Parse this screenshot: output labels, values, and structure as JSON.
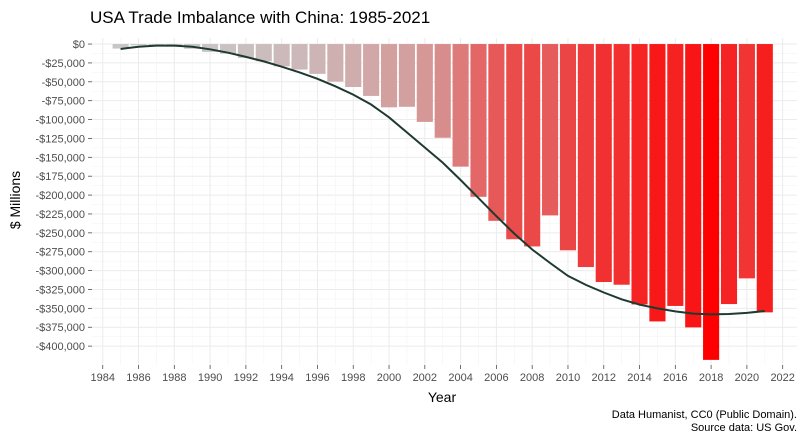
{
  "chart_data": {
    "type": "bar",
    "title": "USA Trade Imbalance with China: 1985-2021",
    "xlabel": "Year",
    "ylabel": "$ Millions",
    "caption": [
      "Data Humanist, CC0 (Public Domain).",
      "Source data: US Gov."
    ],
    "x": [
      1985,
      1986,
      1987,
      1988,
      1989,
      1990,
      1991,
      1992,
      1993,
      1994,
      1995,
      1996,
      1997,
      1998,
      1999,
      2000,
      2001,
      2002,
      2003,
      2004,
      2005,
      2006,
      2007,
      2008,
      2009,
      2010,
      2011,
      2012,
      2013,
      2014,
      2015,
      2016,
      2017,
      2018,
      2019,
      2020,
      2021
    ],
    "values": [
      -6000,
      -1700,
      -2800,
      -3500,
      -6200,
      -10400,
      -12700,
      -18300,
      -22800,
      -29500,
      -33800,
      -39500,
      -49700,
      -56900,
      -68700,
      -83800,
      -83100,
      -103100,
      -124100,
      -162300,
      -202300,
      -234100,
      -258500,
      -268000,
      -226900,
      -273100,
      -295300,
      -315100,
      -318700,
      -344800,
      -367300,
      -346800,
      -375200,
      -418200,
      -344300,
      -310300,
      -355300
    ],
    "trend": {
      "x": [
        1985,
        1986,
        1987,
        1988,
        1989,
        1990,
        1991,
        1992,
        1993,
        1994,
        1995,
        1996,
        1997,
        1998,
        1999,
        2000,
        2001,
        2002,
        2003,
        2004,
        2005,
        2006,
        2007,
        2008,
        2009,
        2010,
        2011,
        2012,
        2013,
        2014,
        2015,
        2016,
        2017,
        2018,
        2019,
        2020,
        2021
      ],
      "values": [
        -6500,
        -3500,
        -2000,
        -2000,
        -3500,
        -7000,
        -11500,
        -17000,
        -23000,
        -30000,
        -37500,
        -46000,
        -56000,
        -67000,
        -80000,
        -97000,
        -117000,
        -137000,
        -157000,
        -180000,
        -204000,
        -228000,
        -251000,
        -272000,
        -290000,
        -307000,
        -319000,
        -329000,
        -338000,
        -345000,
        -350000,
        -354000,
        -357000,
        -358000,
        -357500,
        -356000,
        -353500
      ]
    },
    "ylim": [
      -425000,
      8000
    ],
    "xlim": [
      1983.4,
      2022.8
    ],
    "y_ticks": [
      0,
      -25000,
      -50000,
      -75000,
      -100000,
      -125000,
      -150000,
      -175000,
      -200000,
      -225000,
      -250000,
      -275000,
      -300000,
      -325000,
      -350000,
      -375000,
      -400000
    ],
    "y_tick_labels": [
      "$0",
      "-$25,000",
      "-$50,000",
      "-$75,000",
      "-$100,000",
      "-$125,000",
      "-$150,000",
      "-$175,000",
      "-$200,000",
      "-$225,000",
      "-$250,000",
      "-$275,000",
      "-$300,000",
      "-$325,000",
      "-$350,000",
      "-$375,000",
      "-$400,000"
    ],
    "x_ticks": [
      1984,
      1986,
      1988,
      1990,
      1992,
      1994,
      1996,
      1998,
      2000,
      2002,
      2004,
      2006,
      2008,
      2010,
      2012,
      2014,
      2016,
      2018,
      2020,
      2022
    ],
    "x_tick_labels": [
      "1984",
      "1986",
      "1988",
      "1990",
      "1992",
      "1994",
      "1996",
      "1998",
      "2000",
      "2002",
      "2004",
      "2006",
      "2008",
      "2010",
      "2012",
      "2014",
      "2016",
      "2018",
      "2020",
      "2022"
    ],
    "grid": true,
    "colors": {
      "low": "#c8c8c8",
      "high": "#ff0000",
      "trend": "#1f3a30",
      "grid_major": "#ebebeb",
      "grid_minor": "#f4f4f4"
    }
  }
}
